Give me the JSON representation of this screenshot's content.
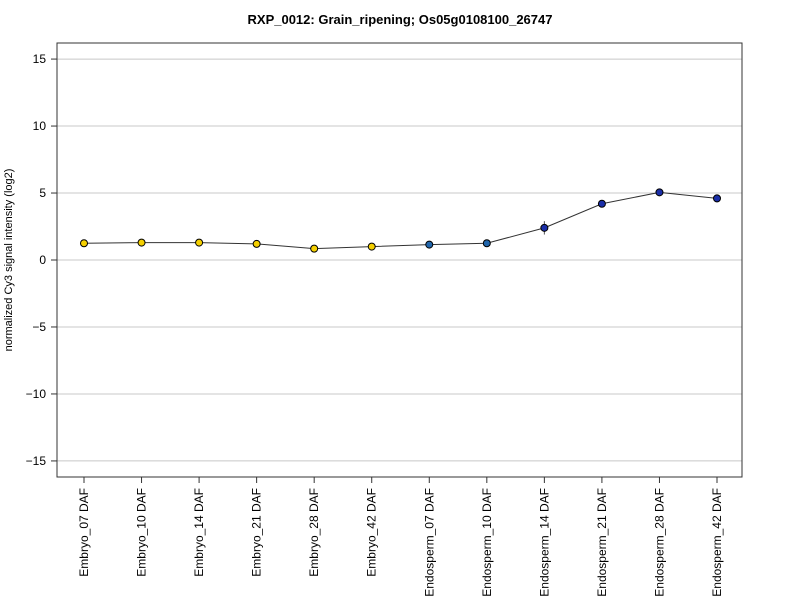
{
  "chart_data": {
    "type": "line",
    "title": "RXP_0012: Grain_ripening; Os05g0108100_26747",
    "xlabel": "",
    "ylabel": "normalized Cy3 signal intensity (log2)",
    "ylim": [
      -16.2,
      16.2
    ],
    "yticks": [
      -15,
      -10,
      -5,
      0,
      5,
      10,
      15
    ],
    "grid": true,
    "categories": [
      "Embryo_07 DAF",
      "Embryo_10 DAF",
      "Embryo_14 DAF",
      "Embryo_21 DAF",
      "Embryo_28 DAF",
      "Embryo_42 DAF",
      "Endosperm_07 DAF",
      "Endosperm_10 DAF",
      "Endosperm_14 DAF",
      "Endosperm_21 DAF",
      "Endosperm_28 DAF",
      "Endosperm_42 DAF"
    ],
    "series": [
      {
        "values": [
          1.25,
          1.3,
          1.3,
          1.2,
          0.85,
          1.0,
          1.15,
          1.25,
          2.4,
          4.2,
          5.05,
          4.6
        ],
        "errors": [
          0.1,
          0.1,
          0.15,
          0.1,
          0.1,
          0.1,
          0.1,
          0.1,
          0.5,
          0.15,
          0.1,
          0.3
        ],
        "colors": [
          "#f5d000",
          "#f5d000",
          "#f5d000",
          "#f5d000",
          "#f5d000",
          "#f5d000",
          "#2166ac",
          "#2166ac",
          "#1a2ea8",
          "#1a2ea8",
          "#1a2ea8",
          "#1a2ea8"
        ]
      }
    ]
  }
}
